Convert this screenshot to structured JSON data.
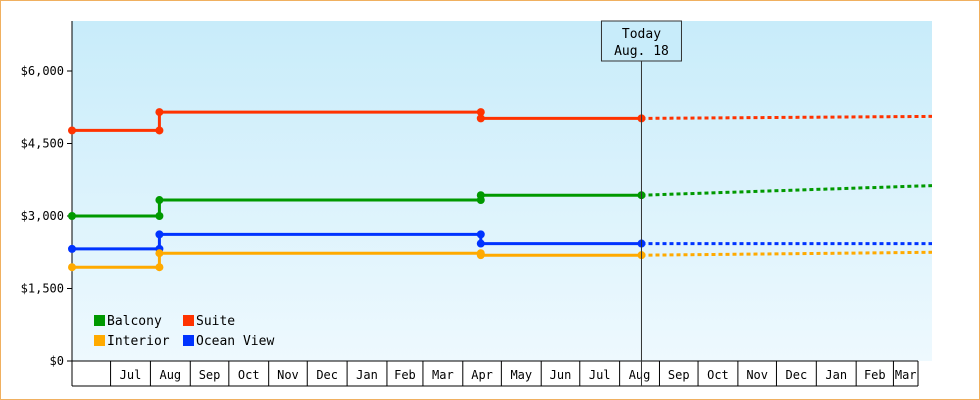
{
  "chart_data": {
    "type": "line",
    "title": "",
    "xlabel": "",
    "ylabel": "",
    "ylim": [
      0,
      6000
    ],
    "y_ticks": [
      0,
      1500,
      3000,
      4500,
      6000
    ],
    "y_tick_labels": [
      "$0",
      "$1,500",
      "$3,000",
      "$4,500",
      "$6,000"
    ],
    "x_range": [
      "2022-06-01",
      "2024-03-31"
    ],
    "months": [
      {
        "label": "Jul",
        "start": "2022-07-01"
      },
      {
        "label": "Aug",
        "start": "2022-08-01"
      },
      {
        "label": "Sep",
        "start": "2022-09-01"
      },
      {
        "label": "Oct",
        "start": "2022-10-01"
      },
      {
        "label": "Nov",
        "start": "2022-11-01"
      },
      {
        "label": "Dec",
        "start": "2022-12-01"
      },
      {
        "label": "Jan",
        "start": "2023-01-01"
      },
      {
        "label": "Feb",
        "start": "2023-02-01"
      },
      {
        "label": "Mar",
        "start": "2023-03-01"
      },
      {
        "label": "Apr",
        "start": "2023-04-01"
      },
      {
        "label": "May",
        "start": "2023-05-01"
      },
      {
        "label": "Jun",
        "start": "2023-06-01"
      },
      {
        "label": "Jul",
        "start": "2023-07-01"
      },
      {
        "label": "Aug",
        "start": "2023-08-01"
      },
      {
        "label": "Sep",
        "start": "2023-09-01"
      },
      {
        "label": "Oct",
        "start": "2023-10-01"
      },
      {
        "label": "Nov",
        "start": "2023-11-01"
      },
      {
        "label": "Dec",
        "start": "2023-12-01"
      },
      {
        "label": "Jan",
        "start": "2024-01-01"
      },
      {
        "label": "Feb",
        "start": "2024-02-01"
      },
      {
        "label": "Mar",
        "start": "2024-03-01"
      }
    ],
    "today": {
      "date": "2023-08-18",
      "label_line1": "Today",
      "label_line2": "Aug. 18"
    },
    "series": [
      {
        "name": "Suite",
        "color": "#ff3300",
        "points": [
          [
            "2022-06-01",
            4770
          ],
          [
            "2022-08-08",
            4770
          ],
          [
            "2022-08-08",
            5150
          ],
          [
            "2023-04-15",
            5150
          ],
          [
            "2023-04-15",
            5020
          ],
          [
            "2023-08-18",
            5020
          ]
        ],
        "markers": [
          [
            "2022-06-01",
            4770
          ],
          [
            "2022-08-08",
            4770
          ],
          [
            "2022-08-08",
            5150
          ],
          [
            "2023-04-15",
            5150
          ],
          [
            "2023-04-15",
            5020
          ],
          [
            "2023-08-18",
            5020
          ]
        ],
        "forecast": [
          [
            "2023-08-18",
            5020
          ],
          [
            "2024-03-31",
            5060
          ]
        ]
      },
      {
        "name": "Balcony",
        "color": "#009900",
        "points": [
          [
            "2022-06-01",
            3000
          ],
          [
            "2022-08-08",
            3000
          ],
          [
            "2022-08-08",
            3330
          ],
          [
            "2023-04-15",
            3330
          ],
          [
            "2023-04-15",
            3430
          ],
          [
            "2023-08-18",
            3430
          ]
        ],
        "markers": [
          [
            "2022-06-01",
            3000
          ],
          [
            "2022-08-08",
            3000
          ],
          [
            "2022-08-08",
            3330
          ],
          [
            "2023-04-15",
            3330
          ],
          [
            "2023-04-15",
            3430
          ],
          [
            "2023-08-18",
            3430
          ]
        ],
        "forecast": [
          [
            "2023-08-18",
            3430
          ],
          [
            "2024-03-31",
            3630
          ]
        ]
      },
      {
        "name": "Ocean View",
        "color": "#0033ff",
        "points": [
          [
            "2022-06-01",
            2320
          ],
          [
            "2022-08-08",
            2320
          ],
          [
            "2022-08-08",
            2620
          ],
          [
            "2023-04-15",
            2620
          ],
          [
            "2023-04-15",
            2430
          ],
          [
            "2023-08-18",
            2430
          ]
        ],
        "markers": [
          [
            "2022-06-01",
            2320
          ],
          [
            "2022-08-08",
            2320
          ],
          [
            "2022-08-08",
            2620
          ],
          [
            "2023-04-15",
            2620
          ],
          [
            "2023-04-15",
            2430
          ],
          [
            "2023-08-18",
            2430
          ]
        ],
        "forecast": [
          [
            "2023-08-18",
            2430
          ],
          [
            "2024-03-31",
            2430
          ]
        ]
      },
      {
        "name": "Interior",
        "color": "#ffaa00",
        "points": [
          [
            "2022-06-01",
            1940
          ],
          [
            "2022-08-08",
            1940
          ],
          [
            "2022-08-08",
            2230
          ],
          [
            "2023-04-15",
            2230
          ],
          [
            "2023-04-15",
            2190
          ],
          [
            "2023-08-18",
            2190
          ]
        ],
        "markers": [
          [
            "2022-06-01",
            1940
          ],
          [
            "2022-08-08",
            1940
          ],
          [
            "2022-08-08",
            2230
          ],
          [
            "2023-04-15",
            2230
          ],
          [
            "2023-04-15",
            2190
          ],
          [
            "2023-08-18",
            2190
          ]
        ],
        "forecast": [
          [
            "2023-08-18",
            2190
          ],
          [
            "2024-03-31",
            2250
          ]
        ]
      }
    ],
    "legend": [
      {
        "name": "Balcony",
        "color": "#009900"
      },
      {
        "name": "Suite",
        "color": "#ff3300"
      },
      {
        "name": "Interior",
        "color": "#ffaa00"
      },
      {
        "name": "Ocean View",
        "color": "#0033ff"
      }
    ],
    "legend_position": "bottom-left",
    "grid": false,
    "background": "gradient light blue"
  }
}
